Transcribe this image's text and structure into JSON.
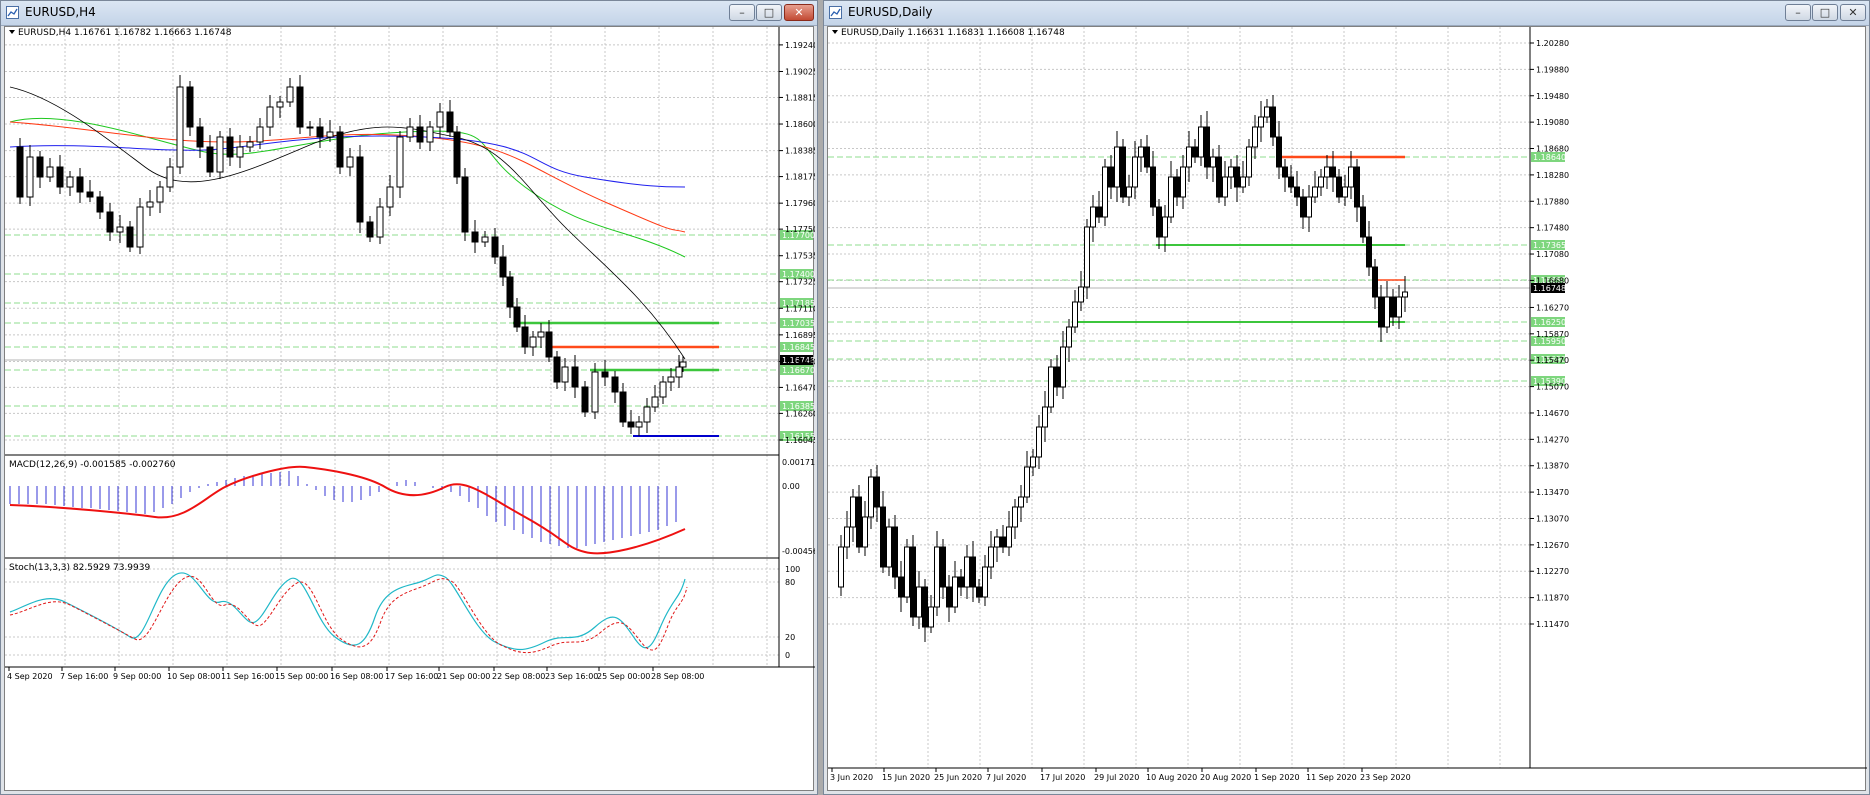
{
  "windows": [
    {
      "title": "EURUSD,H4",
      "info": "EURUSD,H4  1.16761 1.16782 1.16663 1.16748"
    },
    {
      "title": "EURUSD,Daily",
      "info": "EURUSD,Daily  1.16631 1.16831 1.16608 1.16748"
    }
  ],
  "h4": {
    "price_ticks": [
      "1.19240",
      "1.19025",
      "1.18815",
      "1.18600",
      "1.18385",
      "1.18175",
      "1.17960",
      "1.17750",
      "1.17535",
      "1.17325",
      "1.17110",
      "1.16895",
      "1.16680",
      "1.16470",
      "1.16260",
      "1.16045"
    ],
    "price_labels": [
      {
        "text": "1.17700",
        "color": "#3cc63c"
      },
      {
        "text": "1.17400",
        "color": "#3cc63c"
      },
      {
        "text": "1.17185",
        "color": "#3cc63c"
      },
      {
        "text": "1.17035",
        "color": "#3cc63c"
      },
      {
        "text": "1.16845",
        "color": "#3cc63c"
      },
      {
        "text": "1.16748",
        "color": "#000000"
      },
      {
        "text": "1.16670",
        "color": "#3cc63c"
      },
      {
        "text": "1.16385",
        "color": "#3cc63c"
      },
      {
        "text": "1.16155",
        "color": "#3cc63c"
      }
    ],
    "date_ticks": [
      "4 Sep 2020",
      "7 Sep 16:00",
      "9 Sep 00:00",
      "10 Sep 08:00",
      "11 Sep 16:00",
      "15 Sep 00:00",
      "16 Sep 08:00",
      "17 Sep 16:00",
      "21 Sep 00:00",
      "22 Sep 08:00",
      "23 Sep 16:00",
      "25 Sep 00:00",
      "28 Sep 08:00"
    ],
    "macd_label": "MACD(12,26,9) -0.001585 -0.002760",
    "macd_ticks": [
      "0.001715",
      "0.00",
      "-0.004568"
    ],
    "stoch_label": "Stoch(13,3,3) 82.5929 73.9939",
    "stoch_ticks": [
      "100",
      "80",
      "20",
      "0"
    ]
  },
  "daily": {
    "price_ticks": [
      "1.20280",
      "1.19880",
      "1.19480",
      "1.19080",
      "1.18680",
      "1.18280",
      "1.17880",
      "1.17480",
      "1.17080",
      "1.16680",
      "1.16270",
      "1.15870",
      "1.15470",
      "1.15070",
      "1.14670",
      "1.14270",
      "1.13870",
      "1.13470",
      "1.13070",
      "1.12670",
      "1.12270",
      "1.11870",
      "1.11470"
    ],
    "price_labels": [
      {
        "text": "1.18640",
        "color": "#3cc63c"
      },
      {
        "text": "1.17365",
        "color": "#3cc63c"
      },
      {
        "text": "1.16850",
        "color": "#3cc63c"
      },
      {
        "text": "1.16748",
        "color": "#000000"
      },
      {
        "text": "1.16250",
        "color": "#3cc63c"
      },
      {
        "text": "1.15950",
        "color": "#3cc63c"
      },
      {
        "text": "1.15690",
        "color": "#3cc63c"
      },
      {
        "text": "1.15390",
        "color": "#3cc63c"
      }
    ],
    "date_ticks": [
      "3 Jun 2020",
      "15 Jun 2020",
      "25 Jun 2020",
      "7 Jul 2020",
      "17 Jul 2020",
      "29 Jul 2020",
      "10 Aug 2020",
      "20 Aug 2020",
      "1 Sep 2020",
      "11 Sep 2020",
      "23 Sep 2020"
    ]
  },
  "colors": {
    "green": "#3cc63c",
    "orange": "#ff4a1a",
    "blue": "#0000cc",
    "macd_hist": "#3434d4",
    "signal": "#ee1111"
  }
}
